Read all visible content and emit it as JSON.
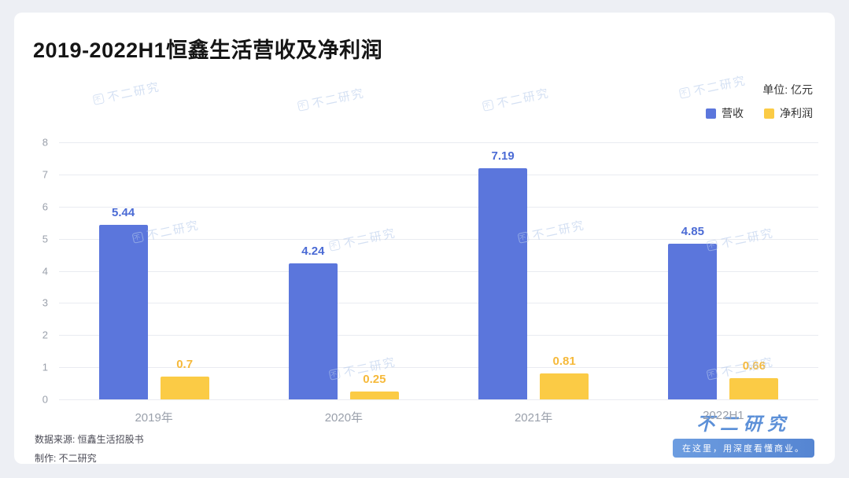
{
  "page": {
    "title": "2019-2022H1恒鑫生活营收及净利润",
    "unit_label": "单位: 亿元"
  },
  "chart_data": {
    "type": "bar",
    "title": "2019-2022H1恒鑫生活营收及净利润",
    "unit": "亿元",
    "categories": [
      "2019年",
      "2020年",
      "2021年",
      "2022H1"
    ],
    "series": [
      {
        "name": "营收",
        "color": "#5b76dc",
        "label_color": "#4b6bd5",
        "values": [
          5.44,
          4.24,
          7.19,
          4.85
        ]
      },
      {
        "name": "净利润",
        "color": "#fbcb45",
        "label_color": "#f6b93a",
        "values": [
          0.7,
          0.25,
          0.81,
          0.66
        ]
      }
    ],
    "ylim": [
      0,
      8
    ],
    "yticks": [
      0,
      1,
      2,
      3,
      4,
      5,
      6,
      7,
      8
    ],
    "grid": true,
    "legend_position": "top-right"
  },
  "footer": {
    "source": "数据来源: 恒鑫生活招股书",
    "producer": "制作: 不二研究"
  },
  "branding": {
    "logo_text": "不二研究",
    "tagline": "在这里，用深度看懂商业。"
  },
  "watermark": {
    "text": "不二研究"
  }
}
